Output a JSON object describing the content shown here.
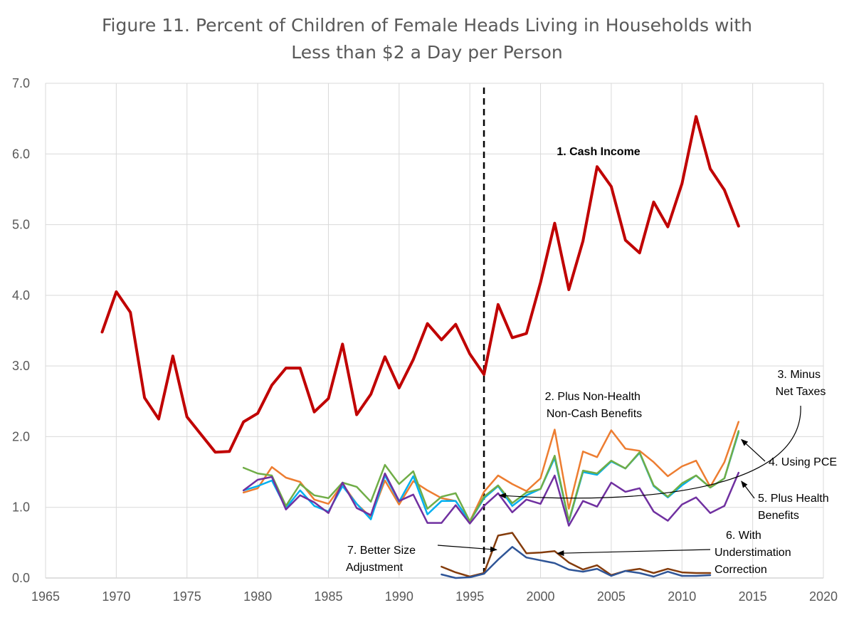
{
  "chart_data": {
    "type": "line",
    "title_lines": [
      "Figure 11. Percent of Children of Female Heads Living in Households with",
      "Less than $2 a Day per Person"
    ],
    "xlabel": "",
    "ylabel": "",
    "xlim": [
      1965,
      2020
    ],
    "ylim": [
      0,
      7
    ],
    "x_ticks": [
      1965,
      1970,
      1975,
      1980,
      1985,
      1990,
      1995,
      2000,
      2005,
      2010,
      2015,
      2020
    ],
    "y_ticks": [
      0,
      1,
      2,
      3,
      4,
      5,
      6,
      7
    ],
    "y_tick_labels": [
      "0.0",
      "1.0",
      "2.0",
      "3.0",
      "4.0",
      "5.0",
      "6.0",
      "7.0"
    ],
    "grid": true,
    "reference_line": {
      "x": 1996,
      "style": "dashed"
    },
    "series": [
      {
        "id": "cash",
        "color": "#C00000",
        "x": [
          1969,
          1970,
          1971,
          1972,
          1973,
          1974,
          1975,
          1976,
          1977,
          1978,
          1979,
          1980,
          1981,
          1982,
          1983,
          1984,
          1985,
          1986,
          1987,
          1988,
          1989,
          1990,
          1991,
          1992,
          1993,
          1994,
          1995,
          1996,
          1997,
          1998,
          1999,
          2000,
          2001,
          2002,
          2003,
          2004,
          2005,
          2006,
          2007,
          2008,
          2009,
          2010,
          2011,
          2012,
          2013,
          2014
        ],
        "values": [
          3.48,
          4.05,
          3.76,
          2.55,
          2.25,
          3.14,
          2.28,
          2.03,
          1.78,
          1.79,
          2.21,
          2.33,
          2.73,
          2.97,
          2.97,
          2.35,
          2.54,
          3.31,
          2.31,
          2.6,
          3.13,
          2.69,
          3.09,
          3.6,
          3.37,
          3.59,
          3.17,
          2.88,
          3.87,
          3.4,
          3.46,
          4.18,
          5.02,
          4.08,
          4.77,
          5.82,
          5.54,
          4.78,
          4.6,
          5.32,
          4.97,
          5.58,
          6.53,
          5.79,
          5.49,
          4.98
        ]
      },
      {
        "id": "non-health",
        "color": "#ED7D31",
        "x": [
          1979,
          1980,
          1981,
          1982,
          1983,
          1984,
          1985,
          1986,
          1987,
          1988,
          1989,
          1990,
          1991,
          1992,
          1993,
          1994,
          1995,
          1996,
          1997,
          1998,
          1999,
          2000,
          2001,
          2002,
          2003,
          2004,
          2005,
          2006,
          2007,
          2008,
          2009,
          2010,
          2011,
          2012,
          2013,
          2014
        ],
        "values": [
          1.21,
          1.27,
          1.57,
          1.42,
          1.36,
          1.11,
          1.05,
          1.33,
          1.05,
          0.86,
          1.38,
          1.04,
          1.37,
          1.24,
          1.13,
          1.09,
          0.8,
          1.22,
          1.45,
          1.33,
          1.23,
          1.41,
          2.1,
          0.98,
          1.79,
          1.71,
          2.09,
          1.83,
          1.8,
          1.64,
          1.44,
          1.58,
          1.66,
          1.29,
          1.64,
          2.21
        ]
      },
      {
        "id": "net-taxes",
        "color": "#00B0F0",
        "x": [
          1979,
          1980,
          1981,
          1982,
          1983,
          1984,
          1985,
          1986,
          1987,
          1988,
          1989,
          1990,
          1991,
          1992,
          1993,
          1994,
          1995,
          1996,
          1997,
          1998,
          1999,
          2000,
          2001,
          2002,
          2003,
          2004,
          2005,
          2006,
          2007,
          2008,
          2009,
          2010,
          2011,
          2012,
          2013,
          2014
        ],
        "values": [
          1.24,
          1.3,
          1.38,
          0.99,
          1.24,
          1.02,
          0.94,
          1.3,
          1.05,
          0.83,
          1.45,
          1.08,
          1.44,
          0.9,
          1.09,
          1.09,
          0.8,
          1.13,
          1.3,
          1.02,
          1.17,
          1.26,
          1.7,
          0.8,
          1.5,
          1.46,
          1.65,
          1.55,
          1.77,
          1.3,
          1.14,
          1.31,
          1.45,
          1.28,
          1.41,
          2.06
        ]
      },
      {
        "id": "pce",
        "color": "#70AD47",
        "x": [
          1979,
          1980,
          1981,
          1982,
          1983,
          1984,
          1985,
          1986,
          1987,
          1988,
          1989,
          1990,
          1991,
          1992,
          1993,
          1994,
          1995,
          1996,
          1997,
          1998,
          1999,
          2000,
          2001,
          2002,
          2003,
          2004,
          2005,
          2006,
          2007,
          2008,
          2009,
          2010,
          2011,
          2012,
          2013,
          2014
        ],
        "values": [
          1.56,
          1.48,
          1.45,
          1.02,
          1.33,
          1.17,
          1.13,
          1.35,
          1.29,
          1.08,
          1.6,
          1.33,
          1.51,
          0.98,
          1.15,
          1.2,
          0.8,
          1.15,
          1.31,
          1.06,
          1.21,
          1.26,
          1.73,
          0.81,
          1.52,
          1.48,
          1.66,
          1.55,
          1.78,
          1.31,
          1.15,
          1.34,
          1.45,
          1.28,
          1.41,
          2.08
        ]
      },
      {
        "id": "health",
        "color": "#7030A0",
        "x": [
          1979,
          1980,
          1981,
          1982,
          1983,
          1984,
          1985,
          1986,
          1987,
          1988,
          1989,
          1990,
          1991,
          1992,
          1993,
          1994,
          1995,
          1996,
          1997,
          1998,
          1999,
          2000,
          2001,
          2002,
          2003,
          2004,
          2005,
          2006,
          2007,
          2008,
          2009,
          2010,
          2011,
          2012,
          2013,
          2014
        ],
        "values": [
          1.24,
          1.39,
          1.43,
          0.97,
          1.17,
          1.07,
          0.92,
          1.35,
          0.99,
          0.89,
          1.48,
          1.09,
          1.18,
          0.78,
          0.78,
          1.03,
          0.77,
          1.02,
          1.2,
          0.93,
          1.11,
          1.05,
          1.45,
          0.74,
          1.09,
          1.01,
          1.35,
          1.22,
          1.27,
          0.94,
          0.81,
          1.04,
          1.14,
          0.92,
          1.02,
          1.49
        ]
      },
      {
        "id": "understimation",
        "color": "#843C0C",
        "x": [
          1993,
          1994,
          1995,
          1996,
          1997,
          1998,
          1999,
          2000,
          2001,
          2002,
          2003,
          2004,
          2005,
          2006,
          2007,
          2008,
          2009,
          2010,
          2011,
          2012
        ],
        "values": [
          0.16,
          0.08,
          0.02,
          0.07,
          0.6,
          0.64,
          0.35,
          0.36,
          0.38,
          0.22,
          0.12,
          0.18,
          0.04,
          0.1,
          0.13,
          0.07,
          0.13,
          0.08,
          0.07,
          0.07
        ]
      },
      {
        "id": "size",
        "color": "#2F5597",
        "x": [
          1993,
          1994,
          1995,
          1996,
          1997,
          1998,
          1999,
          2000,
          2001,
          2002,
          2003,
          2004,
          2005,
          2006,
          2007,
          2008,
          2009,
          2010,
          2011,
          2012
        ],
        "values": [
          0.05,
          0.0,
          0.01,
          0.06,
          0.26,
          0.44,
          0.29,
          0.25,
          0.21,
          0.12,
          0.09,
          0.13,
          0.03,
          0.1,
          0.07,
          0.02,
          0.09,
          0.03,
          0.03,
          0.04
        ]
      }
    ],
    "annotations": [
      {
        "id": "cash",
        "lines": [
          "1. Cash Income"
        ],
        "bold": true
      },
      {
        "id": "non-health",
        "lines": [
          "2. Plus Non-Health",
          "Non-Cash Benefits"
        ]
      },
      {
        "id": "net-taxes",
        "lines": [
          "3. Minus",
          "Net Taxes"
        ]
      },
      {
        "id": "pce",
        "lines": [
          "4. Using PCE"
        ]
      },
      {
        "id": "health",
        "lines": [
          "5. Plus Health",
          "Benefits"
        ]
      },
      {
        "id": "understimation",
        "lines": [
          "6. With",
          "Understimation",
          "Correction"
        ]
      },
      {
        "id": "size",
        "lines": [
          "7. Better Size",
          "Adjustment"
        ]
      }
    ]
  }
}
